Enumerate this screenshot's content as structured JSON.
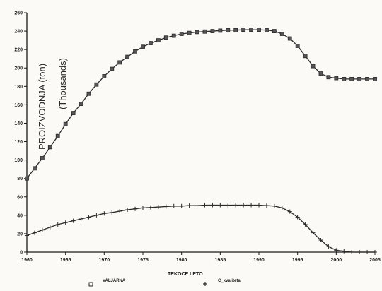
{
  "chart_data": {
    "type": "line",
    "xlabel": "TEKOCE LETO",
    "ylabel_line1": "PROIZVODNJA (ton)",
    "ylabel_line2": "(Thousands)",
    "xlim": [
      1960,
      2005
    ],
    "ylim": [
      0,
      260
    ],
    "x_ticks": [
      1960,
      1965,
      1970,
      1975,
      1980,
      1985,
      1990,
      1995,
      2000,
      2005
    ],
    "x_tick_labels": [
      "1960",
      "1965",
      "1970",
      "1975",
      "1980",
      "1985",
      "1990",
      "1995",
      "2000",
      "2005"
    ],
    "y_ticks": [
      0,
      20,
      40,
      60,
      80,
      100,
      120,
      140,
      160,
      180,
      200,
      220,
      240,
      260
    ],
    "y_tick_labels": [
      "0",
      "20",
      "40",
      "60",
      "80",
      "100",
      "120",
      "140",
      "160",
      "180",
      "200",
      "220",
      "240",
      "260"
    ],
    "grid": false,
    "legend_position": "bottom",
    "x": [
      1960,
      1961,
      1962,
      1963,
      1964,
      1965,
      1966,
      1967,
      1968,
      1969,
      1970,
      1971,
      1972,
      1973,
      1974,
      1975,
      1976,
      1977,
      1978,
      1979,
      1980,
      1981,
      1982,
      1983,
      1984,
      1985,
      1986,
      1987,
      1988,
      1989,
      1990,
      1991,
      1992,
      1993,
      1994,
      1995,
      1996,
      1997,
      1998,
      1999,
      2000,
      2001,
      2002,
      2003,
      2004,
      2005
    ],
    "series": [
      {
        "name": "VALJARNA",
        "marker": "square",
        "values": [
          80,
          91,
          102,
          114,
          126,
          139,
          151,
          161,
          172,
          182,
          191,
          199,
          206,
          212,
          218,
          223,
          227,
          230,
          233,
          235,
          237,
          238,
          239,
          239.5,
          240,
          240.5,
          241,
          241,
          241.5,
          241.5,
          241.5,
          241,
          240,
          237,
          232,
          224,
          213,
          202,
          194,
          190,
          189,
          188,
          188,
          188,
          188,
          188
        ]
      },
      {
        "name": "C_kvaliteta",
        "marker": "plus",
        "values": [
          18,
          21,
          24,
          27,
          30,
          32,
          34,
          36,
          38,
          40,
          42,
          43,
          44.5,
          46,
          47,
          48,
          48.5,
          49,
          49.5,
          50,
          50,
          50.5,
          50.5,
          51,
          51,
          51,
          51,
          51,
          51,
          51,
          51,
          50.5,
          50,
          48,
          44,
          38,
          30,
          21,
          13,
          6,
          2,
          1,
          0,
          0,
          0,
          0
        ]
      }
    ]
  },
  "colors": {
    "axis": "#1a1a1a",
    "series": "#2a2a2a",
    "background": "#fbfaf6"
  }
}
